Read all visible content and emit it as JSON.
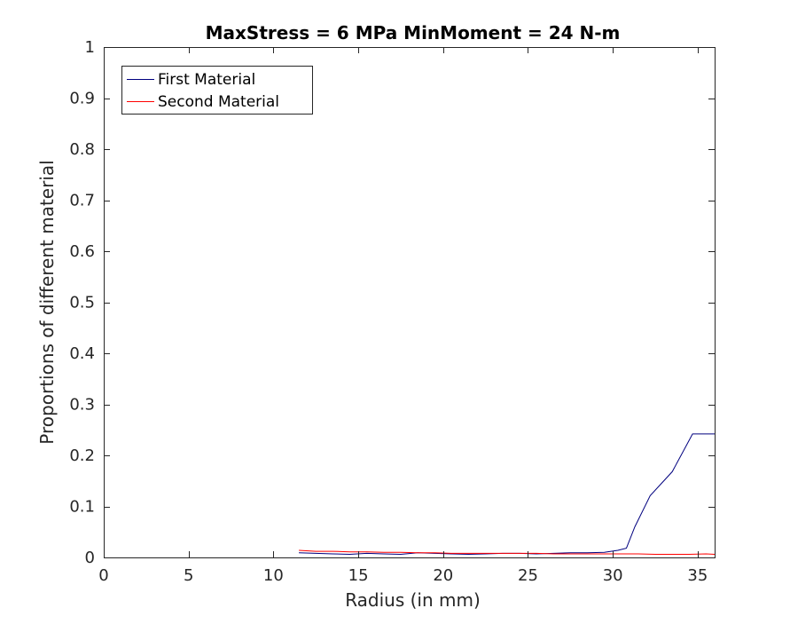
{
  "chart_data": {
    "type": "line",
    "title": "MaxStress = 6 MPa MinMoment = 24 N-m",
    "xlabel": "Radius (in mm)",
    "ylabel": "Proportions of different material",
    "xlim": [
      0,
      36
    ],
    "ylim": [
      0,
      1
    ],
    "xticks": [
      0,
      5,
      10,
      15,
      20,
      25,
      30,
      35
    ],
    "yticks": [
      0,
      0.1,
      0.2,
      0.3,
      0.4,
      0.5,
      0.6,
      0.7,
      0.8,
      0.9,
      1
    ],
    "ytick_labels": [
      "0",
      "0.1",
      "0.2",
      "0.3",
      "0.4",
      "0.5",
      "0.6",
      "0.7",
      "0.8",
      "0.9",
      "1"
    ],
    "grid": false,
    "legend_position": "top-left",
    "series": [
      {
        "name": "First Material",
        "color": "#00007f",
        "x": [
          11.5,
          12.5,
          13.5,
          14.5,
          15.5,
          16.5,
          17.5,
          18.5,
          19.5,
          20.5,
          21.5,
          22.5,
          23.5,
          24.5,
          25.5,
          26.5,
          27.5,
          28.5,
          29.5,
          30.3,
          30.8,
          31.3,
          32.2,
          33.5,
          34.7,
          36
        ],
        "y": [
          0.009,
          0.008,
          0.007,
          0.006,
          0.008,
          0.007,
          0.006,
          0.009,
          0.008,
          0.007,
          0.006,
          0.007,
          0.008,
          0.008,
          0.007,
          0.008,
          0.009,
          0.009,
          0.01,
          0.014,
          0.018,
          0.06,
          0.121,
          0.168,
          0.242,
          0.242
        ]
      },
      {
        "name": "Second Material",
        "color": "#ff0000",
        "x": [
          11.5,
          12.5,
          13.5,
          14.5,
          15.5,
          16.5,
          17.5,
          18.5,
          19.5,
          20.5,
          21.5,
          22.5,
          23.5,
          24.5,
          25.5,
          26.5,
          27.5,
          28.5,
          29.5,
          30.5,
          31.5,
          32.5,
          33.5,
          34.5,
          35.5,
          36
        ],
        "y": [
          0.014,
          0.012,
          0.012,
          0.011,
          0.011,
          0.01,
          0.01,
          0.009,
          0.009,
          0.008,
          0.008,
          0.008,
          0.008,
          0.008,
          0.008,
          0.007,
          0.007,
          0.007,
          0.007,
          0.007,
          0.007,
          0.006,
          0.006,
          0.006,
          0.007,
          0.006
        ]
      }
    ]
  }
}
